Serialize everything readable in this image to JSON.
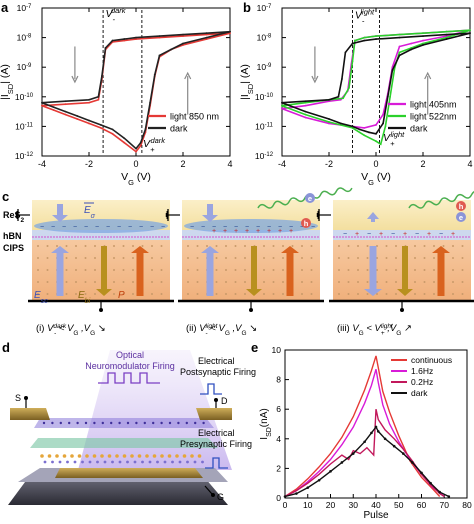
{
  "panel_letters": {
    "a": "a",
    "b": "b",
    "c": "c",
    "d": "d",
    "e": "e"
  },
  "chart_data": [
    {
      "type": "line",
      "panel": "a",
      "xlabel": "V",
      "xlabel_sub": "G",
      "xlabel_unit": "(V)",
      "ylabel": "|I",
      "ylabel_sub": "SD",
      "ylabel_unit": "| (A)",
      "xlim": [
        -4,
        4
      ],
      "ylim_log10": [
        -12,
        -7
      ],
      "x_ticks": [
        "-4",
        "-2",
        "0",
        "2",
        "4"
      ],
      "y_ticks": [
        {
          "base": "10",
          "exp": "-12"
        },
        {
          "base": "10",
          "exp": "-11"
        },
        {
          "base": "10",
          "exp": "-10"
        },
        {
          "base": "10",
          "exp": "-9"
        },
        {
          "base": "10",
          "exp": "-8"
        },
        {
          "base": "10",
          "exp": "-7"
        }
      ],
      "annotations": [
        {
          "text": "V",
          "sub": "-",
          "sup": "dark",
          "x": -1.3,
          "y_log": -7.3
        },
        {
          "text": "V",
          "sub": "+",
          "sup": "dark",
          "x": 0.3,
          "y_log": -11.7
        }
      ],
      "vlines": [
        -1.4,
        0.25
      ],
      "series": [
        {
          "name": "light 850 nm",
          "color": "#e53935",
          "fwd": [
            [
              -4,
              -10.3
            ],
            [
              -3.5,
              -10.45
            ],
            [
              -3,
              -10.6
            ],
            [
              -2.5,
              -10.75
            ],
            [
              -2,
              -10.9
            ],
            [
              -1.5,
              -11.05
            ],
            [
              -1,
              -11.25
            ],
            [
              -0.5,
              -11.55
            ],
            [
              0,
              -11.85
            ],
            [
              0.2,
              -11.65
            ],
            [
              0.4,
              -11.2
            ],
            [
              0.6,
              -10.3
            ],
            [
              0.8,
              -9.3
            ],
            [
              1.0,
              -8.65
            ],
            [
              1.5,
              -8.4
            ],
            [
              2,
              -8.25
            ],
            [
              3,
              -8.05
            ],
            [
              4,
              -7.85
            ]
          ],
          "bwd": [
            [
              4,
              -7.85
            ],
            [
              3,
              -7.9
            ],
            [
              2,
              -7.95
            ],
            [
              1,
              -8.0
            ],
            [
              0,
              -8.05
            ],
            [
              -0.5,
              -8.1
            ],
            [
              -1,
              -8.15
            ],
            [
              -1.3,
              -8.4
            ],
            [
              -1.45,
              -9.4
            ],
            [
              -1.6,
              -10.1
            ],
            [
              -2,
              -10.2
            ],
            [
              -3,
              -10.25
            ],
            [
              -4,
              -10.3
            ]
          ]
        },
        {
          "name": "dark",
          "color": "#222222",
          "fwd": [
            [
              -4,
              -10.2
            ],
            [
              -3.5,
              -10.35
            ],
            [
              -3,
              -10.5
            ],
            [
              -2.5,
              -10.65
            ],
            [
              -2,
              -10.8
            ],
            [
              -1.5,
              -10.95
            ],
            [
              -1,
              -11.1
            ],
            [
              -0.5,
              -11.4
            ],
            [
              0,
              -11.75
            ],
            [
              0.2,
              -11.55
            ],
            [
              0.4,
              -11.1
            ],
            [
              0.6,
              -10.2
            ],
            [
              0.8,
              -9.25
            ],
            [
              1.0,
              -8.6
            ],
            [
              1.5,
              -8.4
            ],
            [
              2,
              -8.2
            ],
            [
              3,
              -8.0
            ],
            [
              4,
              -7.8
            ]
          ],
          "bwd": [
            [
              4,
              -7.8
            ],
            [
              3,
              -7.85
            ],
            [
              2,
              -7.9
            ],
            [
              1,
              -7.95
            ],
            [
              0,
              -8.0
            ],
            [
              -0.5,
              -8.05
            ],
            [
              -1,
              -8.1
            ],
            [
              -1.3,
              -8.35
            ],
            [
              -1.45,
              -9.3
            ],
            [
              -1.6,
              -10.0
            ],
            [
              -2,
              -10.1
            ],
            [
              -3,
              -10.15
            ],
            [
              -4,
              -10.2
            ]
          ]
        }
      ],
      "legend": "bottom-right",
      "grid": false
    },
    {
      "type": "line",
      "panel": "b",
      "xlabel": "V",
      "xlabel_sub": "G",
      "xlabel_unit": "(V)",
      "ylabel": "|I",
      "ylabel_sub": "SD",
      "ylabel_unit": "| (A)",
      "xlim": [
        -4,
        4
      ],
      "ylim_log10": [
        -12,
        -7
      ],
      "x_ticks": [
        "-4",
        "-2",
        "0",
        "2",
        "4"
      ],
      "y_ticks": [
        {
          "base": "10",
          "exp": "-12"
        },
        {
          "base": "10",
          "exp": "-11"
        },
        {
          "base": "10",
          "exp": "-10"
        },
        {
          "base": "10",
          "exp": "-9"
        },
        {
          "base": "10",
          "exp": "-8"
        },
        {
          "base": "10",
          "exp": "-7"
        }
      ],
      "annotations": [
        {
          "text": "V",
          "sub": "-",
          "sup": "light",
          "x": -0.9,
          "y_log": -7.35
        },
        {
          "text": "V",
          "sub": "+",
          "sup": "light",
          "x": 0.3,
          "y_log": -11.5
        }
      ],
      "vlines": [
        -1.0,
        0.15
      ],
      "series": [
        {
          "name": "light 405nm",
          "color": "#d81bd8",
          "fwd": [
            [
              -4,
              -10.4
            ],
            [
              -3,
              -10.7
            ],
            [
              -2,
              -10.9
            ],
            [
              -1,
              -11.0
            ],
            [
              -0.5,
              -11.05
            ],
            [
              0,
              -10.95
            ],
            [
              0.3,
              -10.6
            ],
            [
              0.5,
              -9.9
            ],
            [
              0.7,
              -9.0
            ],
            [
              1.0,
              -8.3
            ],
            [
              1.5,
              -8.2
            ],
            [
              2,
              -8.1
            ],
            [
              3,
              -7.95
            ],
            [
              4,
              -7.75
            ]
          ],
          "bwd": [
            [
              4,
              -7.75
            ],
            [
              3,
              -7.8
            ],
            [
              2,
              -7.85
            ],
            [
              1,
              -7.9
            ],
            [
              0,
              -7.95
            ],
            [
              -0.5,
              -8.0
            ],
            [
              -0.9,
              -8.1
            ],
            [
              -1.05,
              -8.9
            ],
            [
              -1.2,
              -9.8
            ],
            [
              -1.5,
              -10.1
            ],
            [
              -2,
              -10.15
            ],
            [
              -3,
              -10.3
            ],
            [
              -4,
              -10.4
            ]
          ]
        },
        {
          "name": "light 522nm",
          "color": "#2bd12b",
          "fwd": [
            [
              -4,
              -10.3
            ],
            [
              -3,
              -10.6
            ],
            [
              -2,
              -10.85
            ],
            [
              -1,
              -11.05
            ],
            [
              -0.5,
              -11.3
            ],
            [
              0,
              -11.5
            ],
            [
              0.2,
              -11.6
            ],
            [
              0.4,
              -11.0
            ],
            [
              0.6,
              -10.0
            ],
            [
              0.8,
              -9.0
            ],
            [
              1.0,
              -8.5
            ],
            [
              1.5,
              -8.35
            ],
            [
              2,
              -8.2
            ],
            [
              3,
              -8.0
            ],
            [
              4,
              -7.75
            ]
          ],
          "bwd": [
            [
              4,
              -7.75
            ],
            [
              3,
              -7.8
            ],
            [
              2,
              -7.85
            ],
            [
              1,
              -7.9
            ],
            [
              0,
              -7.95
            ],
            [
              -0.5,
              -8.0
            ],
            [
              -0.9,
              -8.1
            ],
            [
              -1.0,
              -8.8
            ],
            [
              -1.15,
              -9.7
            ],
            [
              -1.4,
              -10.05
            ],
            [
              -2,
              -10.1
            ],
            [
              -3,
              -10.2
            ],
            [
              -4,
              -10.3
            ]
          ]
        },
        {
          "name": "dark",
          "color": "#111111",
          "fwd": [
            [
              -4,
              -10.2
            ],
            [
              -3,
              -10.5
            ],
            [
              -2,
              -10.75
            ],
            [
              -1.5,
              -10.9
            ],
            [
              -1,
              -11.0
            ],
            [
              -0.7,
              -11.1
            ],
            [
              -0.3,
              -11.2
            ],
            [
              0,
              -11.25
            ],
            [
              0.3,
              -10.9
            ],
            [
              0.5,
              -10.0
            ],
            [
              0.7,
              -9.1
            ],
            [
              1.0,
              -8.6
            ],
            [
              1.5,
              -8.4
            ],
            [
              2,
              -8.25
            ],
            [
              3,
              -8.05
            ],
            [
              4,
              -7.85
            ]
          ],
          "bwd": [
            [
              4,
              -7.85
            ],
            [
              3,
              -7.9
            ],
            [
              2,
              -7.95
            ],
            [
              1,
              -8.0
            ],
            [
              0,
              -8.05
            ],
            [
              -0.5,
              -8.1
            ],
            [
              -1,
              -8.2
            ],
            [
              -1.3,
              -8.5
            ],
            [
              -1.45,
              -9.4
            ],
            [
              -1.6,
              -10.0
            ],
            [
              -2,
              -10.1
            ],
            [
              -3,
              -10.15
            ],
            [
              -4,
              -10.2
            ]
          ]
        }
      ],
      "legend": "bottom-right",
      "grid": false
    },
    {
      "type": "line",
      "panel": "e",
      "xlabel": "Pulse",
      "ylabel": "I",
      "ylabel_sub": "SD",
      "ylabel_unit": "(nA)",
      "xlim": [
        0,
        80
      ],
      "ylim": [
        0,
        10
      ],
      "x_ticks": [
        "0",
        "10",
        "20",
        "30",
        "40",
        "50",
        "60",
        "70",
        "80"
      ],
      "y_ticks": [
        "0",
        "2",
        "4",
        "6",
        "8",
        "10"
      ],
      "series": [
        {
          "name": "continuous",
          "color": "#e53935",
          "x": [
            0,
            5,
            10,
            15,
            20,
            25,
            30,
            35,
            38,
            40,
            41,
            43,
            46,
            50,
            55,
            60,
            65,
            68
          ],
          "y": [
            0.1,
            0.6,
            1.3,
            2.1,
            3.0,
            4.1,
            5.5,
            7.3,
            8.6,
            9.6,
            8.8,
            7.2,
            5.8,
            4.2,
            2.5,
            1.4,
            0.6,
            0.1
          ]
        },
        {
          "name": "1.6Hz",
          "color": "#d81bd8",
          "x": [
            0,
            5,
            10,
            15,
            20,
            25,
            30,
            35,
            38,
            40,
            41,
            43,
            46,
            50,
            55,
            60,
            65,
            70
          ],
          "y": [
            0.1,
            0.5,
            1.1,
            1.8,
            2.6,
            3.6,
            4.8,
            6.4,
            7.6,
            8.7,
            7.8,
            6.3,
            5.0,
            3.8,
            2.6,
            1.6,
            0.7,
            0.1
          ]
        },
        {
          "name": "0.2Hz",
          "color": "#c2185b",
          "x": [
            0,
            5,
            10,
            15,
            20,
            25,
            28,
            30,
            33,
            36,
            39,
            40,
            41,
            44,
            48,
            52,
            56,
            60,
            64,
            68,
            70
          ],
          "y": [
            0.1,
            0.5,
            1.0,
            1.6,
            2.3,
            2.9,
            2.6,
            3.2,
            3.0,
            3.4,
            2.9,
            6.0,
            5.3,
            4.6,
            4.0,
            3.3,
            2.5,
            1.6,
            0.9,
            0.3,
            0.1
          ]
        },
        {
          "name": "dark",
          "color": "#111111",
          "x": [
            0,
            5,
            10,
            15,
            20,
            25,
            30,
            35,
            38,
            40,
            41,
            44,
            48,
            52,
            56,
            60,
            64,
            68,
            72
          ],
          "y": [
            0.1,
            0.3,
            0.7,
            1.2,
            1.8,
            2.4,
            3.0,
            3.8,
            4.4,
            4.8,
            4.5,
            4.0,
            3.5,
            3.0,
            2.4,
            1.7,
            1.0,
            0.4,
            0.1
          ]
        }
      ],
      "legend": "top-right",
      "grid": false
    }
  ],
  "panel_c": {
    "layers": [
      {
        "base": "ReS",
        "sub": "2"
      },
      {
        "base": "hBN",
        "sub": ""
      },
      {
        "base": "CIPS",
        "sub": ""
      }
    ],
    "arrow_labels": {
      "e_sigma": {
        "base": "E",
        "sub": "σ"
      },
      "e_sc": {
        "base": "E",
        "sub": "sc"
      },
      "e_bi": {
        "base": "E",
        "sub": "bi"
      },
      "p": {
        "base": "P",
        "sub": ""
      }
    },
    "photo_carriers": [
      {
        "glyph": "e",
        "color": "#8a94d8"
      },
      {
        "glyph": "h",
        "color": "#e05a50"
      },
      {
        "glyph": "e",
        "color": "#8a94d8"
      }
    ],
    "captions": [
      {
        "roman": "(i)",
        "lhs": "V",
        "lhs_sub": "-",
        "lhs_sup": "dark",
        "rel": " < V",
        "rel_sub": "G",
        "tail": " ,V",
        "tail_sub": "G",
        "arrow": "↘"
      },
      {
        "roman": "(ii)",
        "lhs": "V",
        "lhs_sub": "-",
        "lhs_sup": "light",
        "rel": " < V",
        "rel_sub": "G",
        "tail": " ,V",
        "tail_sub": "G",
        "arrow": "↘"
      },
      {
        "roman": "(iii)",
        "lhs": "V",
        "lhs_sub": "G",
        "lhs_sup": "",
        "rel": " < V",
        "rel_sub": "+",
        "rel_sup": "light",
        "tail": " ,V",
        "tail_sub": "G",
        "arrow": "↗"
      }
    ]
  },
  "panel_d": {
    "optical_line1": "Optical",
    "optical_line2": "Neuromodulator Firing",
    "post_line1": "Electrical",
    "post_line2": "Postsynaptic Firing",
    "pre_line1": "Electrical",
    "pre_line2": "Presynaptic Firing",
    "terminal_s": "S",
    "terminal_d": "D",
    "terminal_g": "G"
  }
}
